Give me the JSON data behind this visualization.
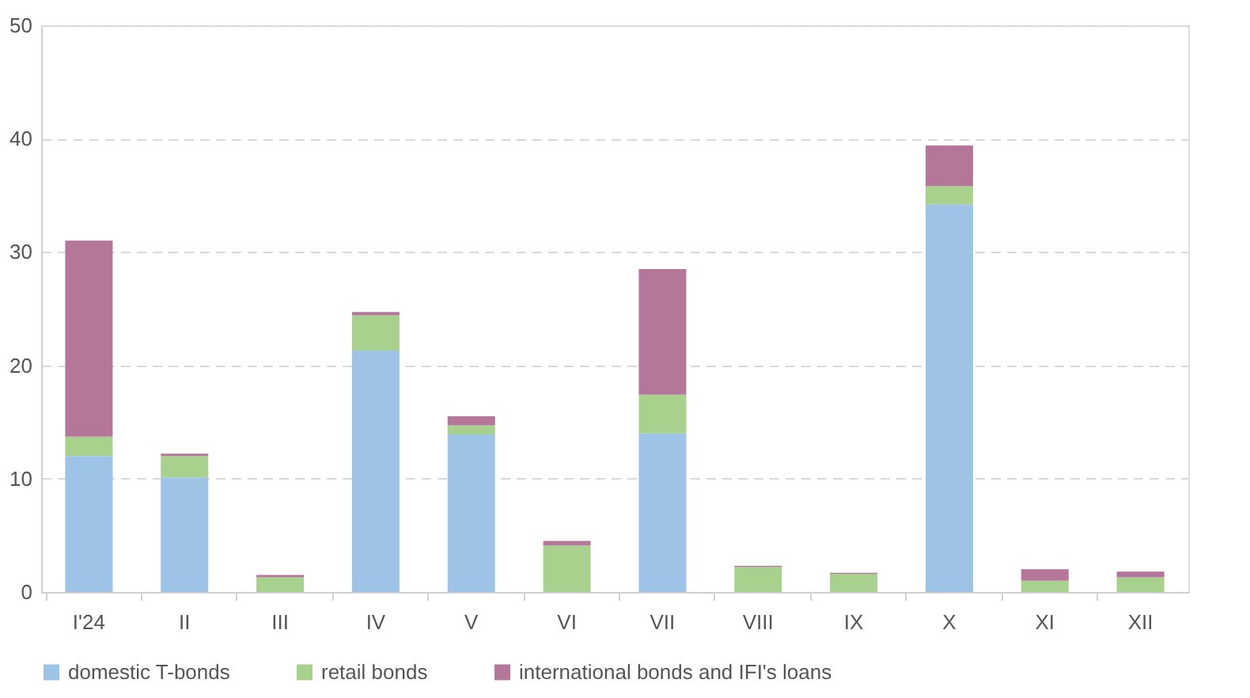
{
  "chart_data": {
    "type": "bar",
    "stacked": true,
    "categories": [
      "I'24",
      "II",
      "III",
      "IV",
      "V",
      "VI",
      "VII",
      "VIII",
      "IX",
      "X",
      "XI",
      "XII"
    ],
    "series": [
      {
        "name": "domestic T-bonds",
        "color": "#9dc3e6",
        "values": [
          12.0,
          10.1,
          0,
          21.3,
          13.9,
          0,
          14.0,
          0,
          0,
          34.2,
          0,
          0
        ]
      },
      {
        "name": "retail bonds",
        "color": "#a9d18e",
        "values": [
          1.7,
          1.9,
          1.3,
          3.1,
          0.8,
          4.1,
          3.4,
          2.2,
          1.6,
          1.6,
          1.0,
          1.3
        ]
      },
      {
        "name": "international bonds and IFI's loans",
        "color": "#b4779a",
        "values": [
          17.3,
          0.2,
          0.2,
          0.3,
          0.8,
          0.4,
          11.1,
          0.1,
          0.1,
          3.6,
          1.0,
          0.5
        ]
      }
    ],
    "ylim": [
      0,
      50
    ],
    "yticks": [
      0,
      10,
      20,
      30,
      40,
      50
    ],
    "grid": "y",
    "legend": "bottom"
  }
}
